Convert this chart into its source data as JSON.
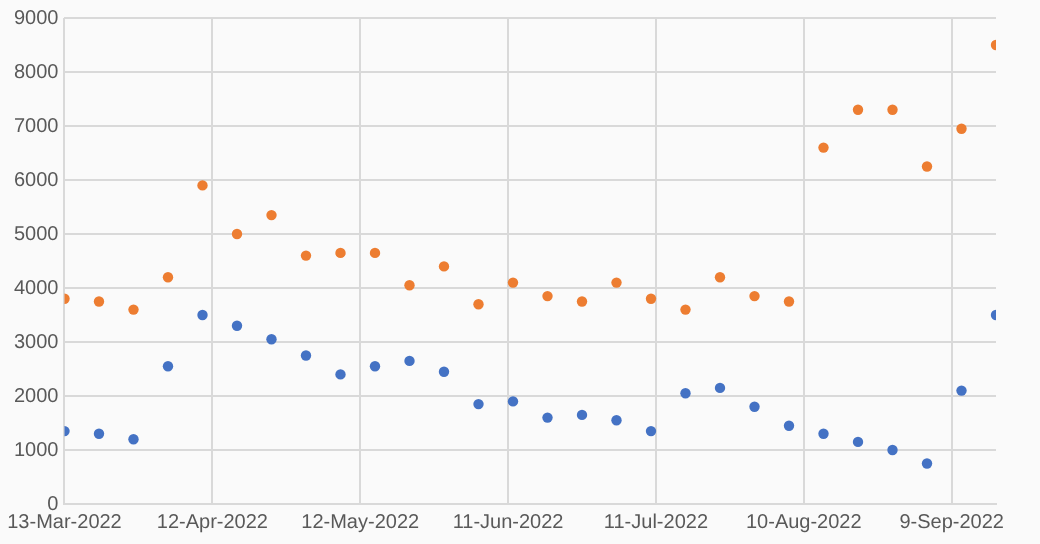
{
  "chart_data": {
    "type": "scatter",
    "x": [
      "2022-03-13",
      "2022-03-20",
      "2022-03-27",
      "2022-04-03",
      "2022-04-10",
      "2022-04-17",
      "2022-04-24",
      "2022-05-01",
      "2022-05-08",
      "2022-05-15",
      "2022-05-22",
      "2022-05-29",
      "2022-06-05",
      "2022-06-12",
      "2022-06-19",
      "2022-06-26",
      "2022-07-03",
      "2022-07-10",
      "2022-07-17",
      "2022-07-24",
      "2022-07-31",
      "2022-08-07",
      "2022-08-14",
      "2022-08-21",
      "2022-08-28",
      "2022-09-04",
      "2022-09-11",
      "2022-09-18"
    ],
    "series": [
      {
        "color": "#ed7d31",
        "values": [
          3800,
          3750,
          3600,
          4200,
          5900,
          5000,
          5350,
          4600,
          4650,
          4650,
          4050,
          4400,
          3700,
          4100,
          3850,
          3750,
          4100,
          3800,
          3600,
          4200,
          3850,
          3750,
          6600,
          7300,
          7300,
          6250,
          6950,
          8500
        ]
      },
      {
        "color": "#4472c4",
        "values": [
          1350,
          1300,
          1200,
          2550,
          3500,
          3300,
          3050,
          2750,
          2400,
          2550,
          2650,
          2450,
          1850,
          1900,
          1600,
          1650,
          1550,
          1350,
          2050,
          2150,
          1800,
          1450,
          1300,
          1150,
          1000,
          750,
          2100,
          3500
        ]
      }
    ],
    "xlim": [
      "2022-03-13",
      "2022-09-18"
    ],
    "xticks": [
      {
        "value": "2022-03-13",
        "label": "13-Mar-2022"
      },
      {
        "value": "2022-04-12",
        "label": "12-Apr-2022"
      },
      {
        "value": "2022-05-12",
        "label": "12-May-2022"
      },
      {
        "value": "2022-06-11",
        "label": "11-Jun-2022"
      },
      {
        "value": "2022-07-11",
        "label": "11-Jul-2022"
      },
      {
        "value": "2022-08-10",
        "label": "10-Aug-2022"
      },
      {
        "value": "2022-09-09",
        "label": "9-Sep-2022"
      }
    ],
    "ylim": [
      0,
      9000
    ],
    "yticks": [
      0,
      1000,
      2000,
      3000,
      4000,
      5000,
      6000,
      7000,
      8000,
      9000
    ],
    "grid": true,
    "marker": "circle"
  }
}
